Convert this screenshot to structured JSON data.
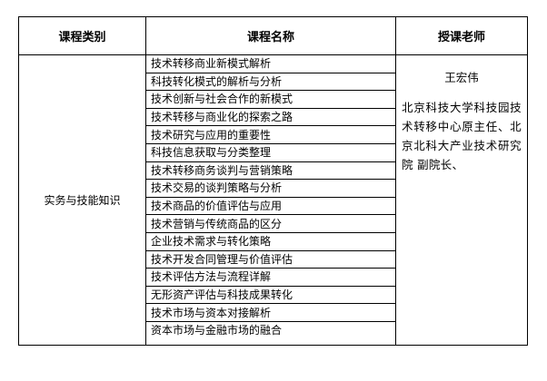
{
  "headers": {
    "category": "课程类别",
    "course": "课程名称",
    "teacher": "授课老师"
  },
  "category": "实务与技能知识",
  "courses": [
    "技术转移商业新模式解析",
    "科技转化模式的解析与分析",
    "技术创新与社会合作的新模式",
    "技术转移与商业化的探索之路",
    "技术研究与应用的重要性",
    "科技信息获取与分类整理",
    "技术转移商务谈判与营销策略",
    "技术交易的谈判策略与分析",
    "技术商品的价值评估与应用",
    "技术营销与传统商品的区分",
    "企业技术需求与转化策略",
    "技术开发合同管理与价值评估",
    "技术评估方法与流程详解",
    "无形资产评估与科技成果转化",
    "技术市场与资本对接解析",
    "资本市场与金融市场的融合"
  ],
  "teacher": {
    "name": "王宏伟",
    "description": "北京科技大学科技园技术转移中心原主任、北京北科大产业技术研究院 副院长、"
  }
}
